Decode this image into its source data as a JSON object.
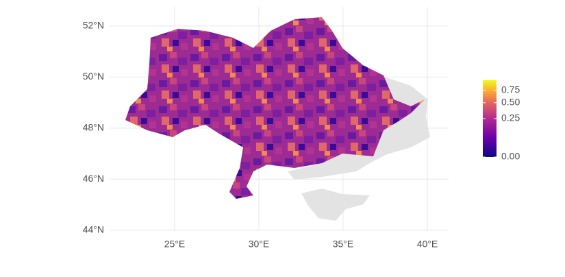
{
  "map": {
    "xlim": [
      21.14,
      41.26
    ],
    "ylim": [
      43.97,
      52.75
    ],
    "xticks": [
      {
        "value": 25,
        "label": "25°E"
      },
      {
        "value": 30,
        "label": "30°E"
      },
      {
        "value": 35,
        "label": "35°E"
      },
      {
        "value": 40,
        "label": "40°E"
      }
    ],
    "yticks": [
      {
        "value": 44,
        "label": "44°N"
      },
      {
        "value": 46,
        "label": "46°N"
      },
      {
        "value": 48,
        "label": "48°N"
      },
      {
        "value": 50,
        "label": "50°N"
      },
      {
        "value": 52,
        "label": "52°N"
      }
    ],
    "grid": true,
    "legend": {
      "scale": "sqrt",
      "limits": [
        0,
        1
      ],
      "ticks": [
        {
          "value": 0,
          "label": "0.00"
        },
        {
          "value": 0.25,
          "label": "0.25"
        },
        {
          "value": 0.5,
          "label": "0.50"
        },
        {
          "value": 0.75,
          "label": "0.75"
        }
      ]
    }
  }
}
